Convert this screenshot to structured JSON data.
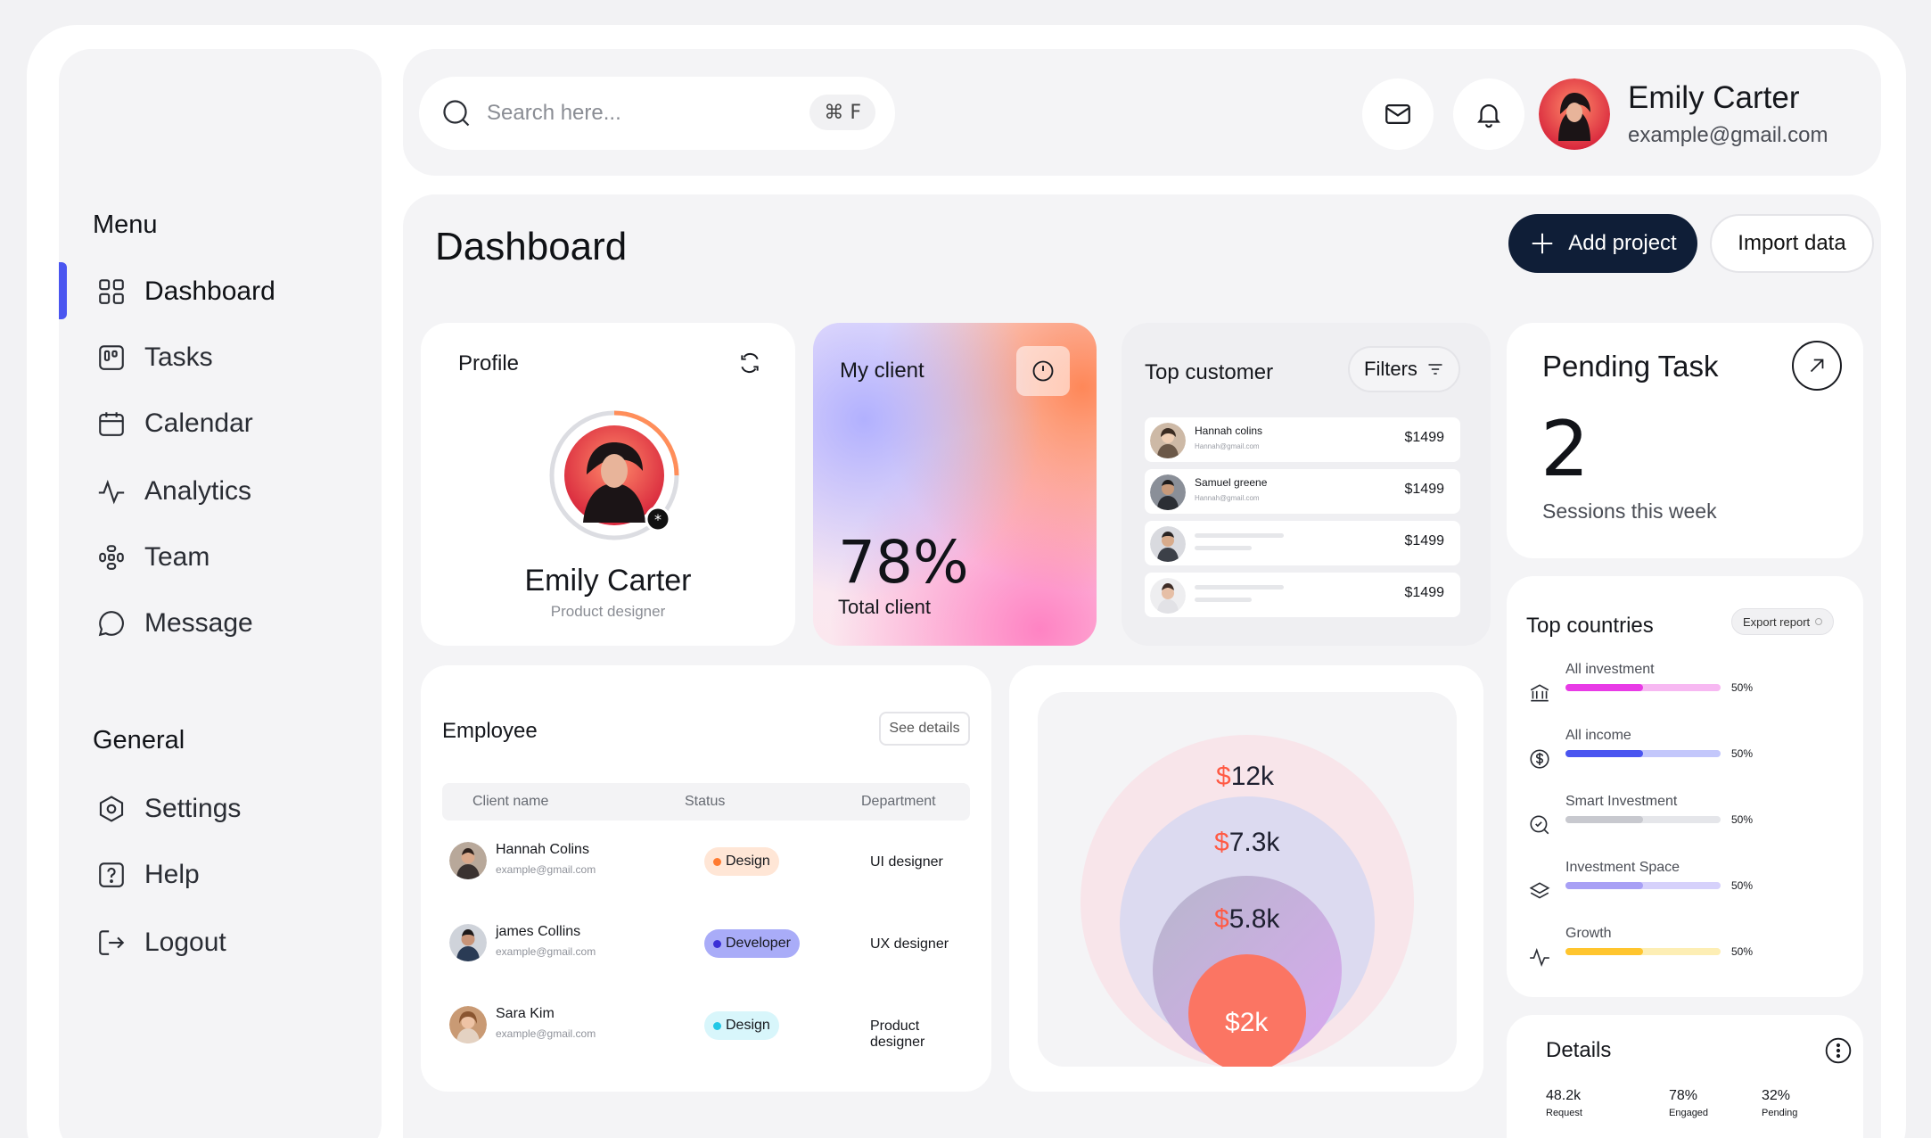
{
  "sidebar": {
    "menu_heading": "Menu",
    "menu_items": [
      {
        "label": "Dashboard",
        "icon": "grid-icon",
        "active": true
      },
      {
        "label": "Tasks",
        "icon": "kanban-icon"
      },
      {
        "label": "Calendar",
        "icon": "calendar-icon"
      },
      {
        "label": "Analytics",
        "icon": "pulse-icon"
      },
      {
        "label": "Team",
        "icon": "team-icon"
      },
      {
        "label": "Message",
        "icon": "chat-icon"
      }
    ],
    "general_heading": "General",
    "general_items": [
      {
        "label": "Settings",
        "icon": "hexagon-gear-icon"
      },
      {
        "label": "Help",
        "icon": "help-icon"
      },
      {
        "label": "Logout",
        "icon": "logout-icon"
      }
    ]
  },
  "header": {
    "search_placeholder": "Search here...",
    "shortcut": "⌘ F",
    "user_name": "Emily Carter",
    "user_email": "example@gmail.com"
  },
  "page": {
    "title": "Dashboard",
    "add_project": "Add project",
    "import_data": "Import data"
  },
  "profile": {
    "title": "Profile",
    "name": "Emily Carter",
    "role": "Product designer"
  },
  "my_client": {
    "title": "My client",
    "value": "78%",
    "caption": "Total client"
  },
  "top_customer": {
    "title": "Top customer",
    "filters": "Filters",
    "rows": [
      {
        "name": "Hannah colins",
        "email": "Hannah@gmail.com",
        "price": "$1499"
      },
      {
        "name": "Samuel greene",
        "email": "Hannah@gmail.com",
        "price": "$1499"
      },
      {
        "name": "",
        "email": "",
        "price": "$1499"
      },
      {
        "name": "",
        "email": "",
        "price": "$1499"
      }
    ]
  },
  "pending_task": {
    "title": "Pending Task",
    "value": "2",
    "caption": "Sessions this week"
  },
  "employee": {
    "title": "Employee",
    "see_details": "See details",
    "columns": [
      "Client name",
      "Status",
      "Department"
    ],
    "rows": [
      {
        "name": "Hannah Colins",
        "email": "example@gmail.com",
        "status": "Design",
        "status_color": "#ffe6d6",
        "dot": "#ff7a30",
        "department": "UI designer"
      },
      {
        "name": "james Collins",
        "email": "example@gmail.com",
        "status": "Developer",
        "status_color": "#a9acf8",
        "dot": "#3a2fd6",
        "department": "UX designer"
      },
      {
        "name": "Sara Kim",
        "email": "example@gmail.com",
        "status": "Design",
        "status_color": "#d8f6fb",
        "dot": "#23c7e6",
        "department": "Product designer"
      }
    ]
  },
  "bubbles": {
    "items": [
      {
        "currency": "$",
        "amount": "12k"
      },
      {
        "currency": "$",
        "amount": "7.3k"
      },
      {
        "currency": "$",
        "amount": "5.8k"
      },
      {
        "currency": "$",
        "amount": "2k"
      }
    ]
  },
  "top_countries": {
    "title": "Top countries",
    "export": "Export report",
    "rows": [
      {
        "label": "All investment",
        "pct": "50%",
        "value": 0.5,
        "fill": "#e83be6",
        "track": "#f7b8f2",
        "icon": "bank-icon"
      },
      {
        "label": "All income",
        "pct": "50%",
        "value": 0.5,
        "fill": "#4a55f0",
        "track": "#c3c7fb",
        "icon": "dollar-icon"
      },
      {
        "label": "Smart Investment",
        "pct": "50%",
        "value": 0.5,
        "fill": "#c8c9cf",
        "track": "#e5e6ea",
        "icon": "search-icon"
      },
      {
        "label": "Investment Space",
        "pct": "50%",
        "value": 0.5,
        "fill": "#a8a0f5",
        "track": "#d6d1fb",
        "icon": "layers-icon"
      },
      {
        "label": "Growth",
        "pct": "50%",
        "value": 0.5,
        "fill": "#ffc52e",
        "track": "#fdeeb4",
        "icon": "pulse-icon"
      }
    ]
  },
  "details": {
    "title": "Details",
    "stats": [
      {
        "value": "48.2k",
        "label": "Request"
      },
      {
        "value": "78%",
        "label": "Engaged"
      },
      {
        "value": "32%",
        "label": "Pending"
      }
    ]
  }
}
